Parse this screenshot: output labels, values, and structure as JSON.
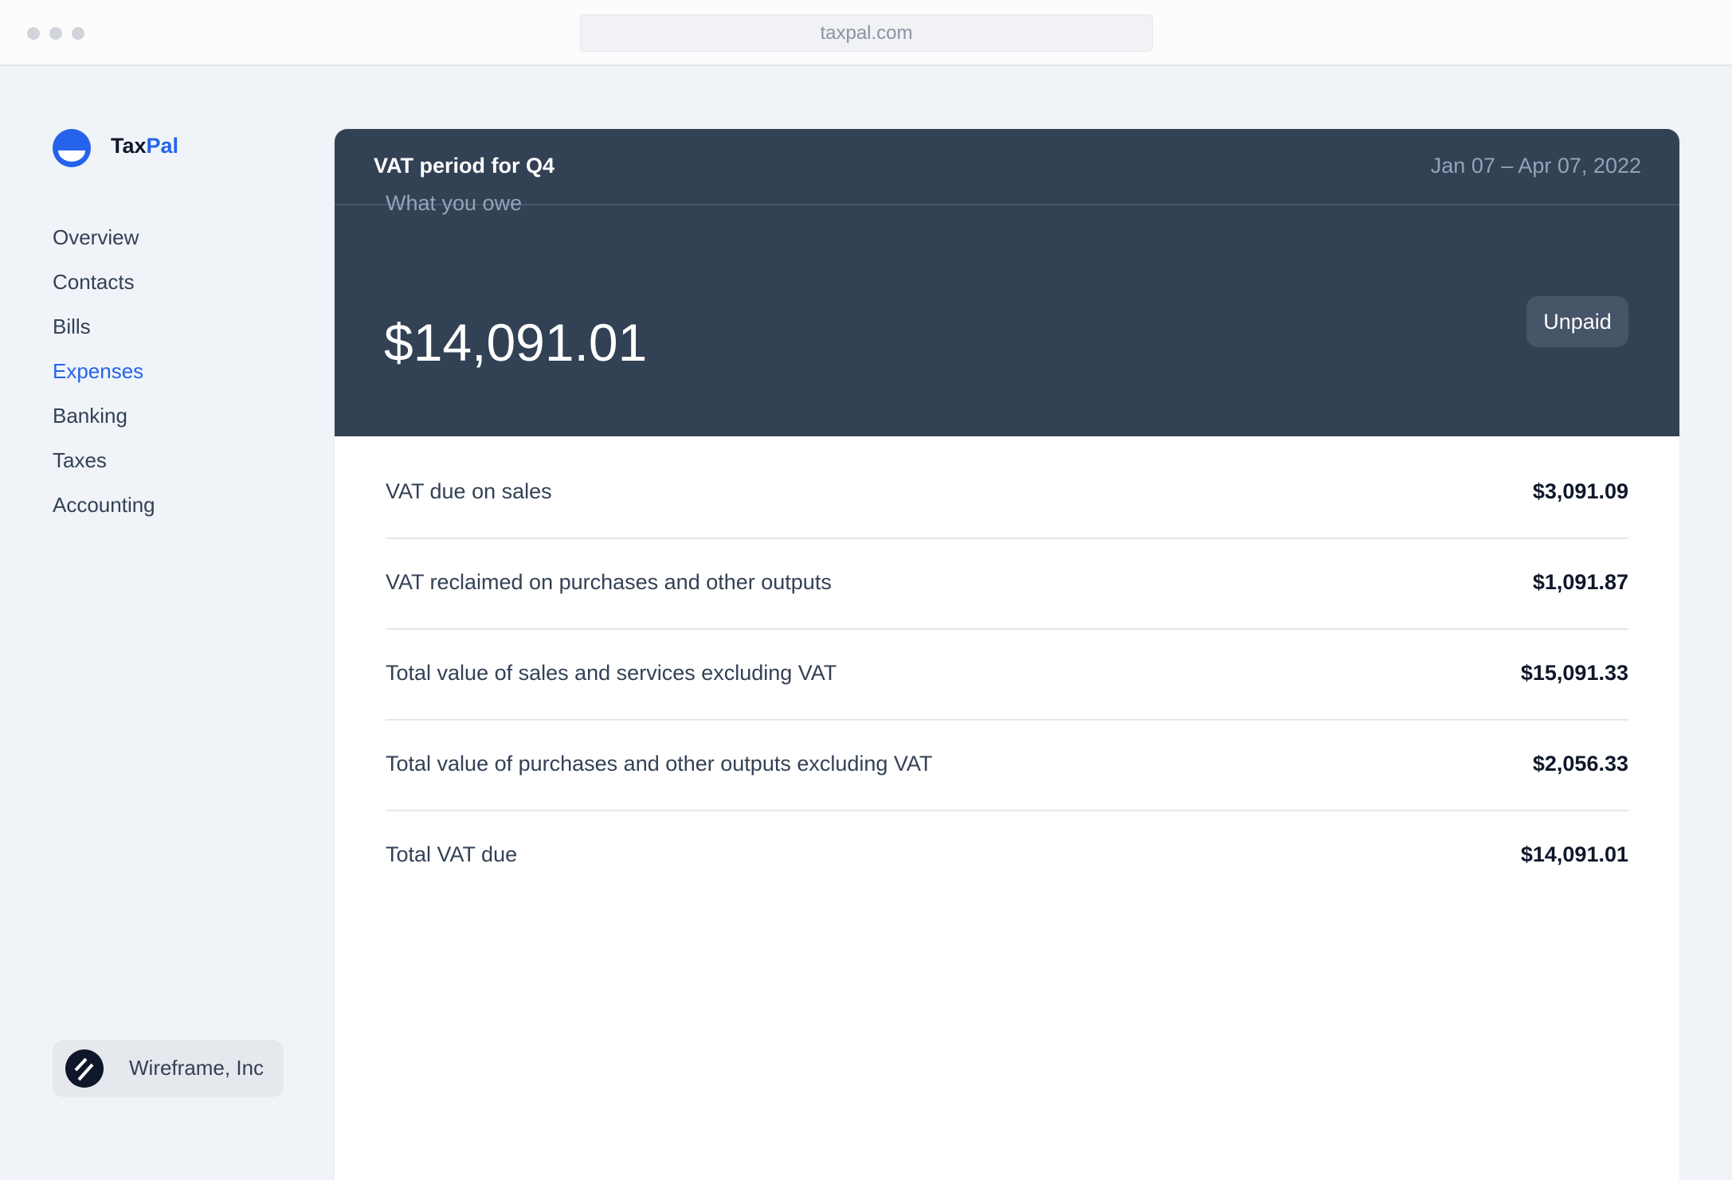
{
  "browser": {
    "url": "taxpal.com"
  },
  "brand": {
    "name_part1": "Tax",
    "name_part2": "Pal",
    "accent": "#2563eb"
  },
  "sidebar": {
    "items": [
      {
        "label": "Overview",
        "active": false
      },
      {
        "label": "Contacts",
        "active": false
      },
      {
        "label": "Bills",
        "active": false
      },
      {
        "label": "Expenses",
        "active": true
      },
      {
        "label": "Banking",
        "active": false
      },
      {
        "label": "Taxes",
        "active": false
      },
      {
        "label": "Accounting",
        "active": false
      }
    ],
    "org": {
      "name": "Wireframe, Inc",
      "icon": "wireframe-logo-icon"
    }
  },
  "card": {
    "title": "VAT period for Q4",
    "date_range": "Jan 07 – Apr 07, 2022",
    "owe_label": "What you owe",
    "owe_amount": "$14,091.01",
    "status": "Unpaid",
    "rows": [
      {
        "label": "VAT due on sales",
        "value": "$3,091.09"
      },
      {
        "label": "VAT reclaimed on purchases and other outputs",
        "value": "$1,091.87"
      },
      {
        "label": "Total value of sales and services excluding VAT",
        "value": "$15,091.33"
      },
      {
        "label": "Total value of purchases and other outputs excluding VAT",
        "value": "$2,056.33"
      },
      {
        "label": "Total VAT due",
        "value": "$14,091.01"
      }
    ]
  }
}
